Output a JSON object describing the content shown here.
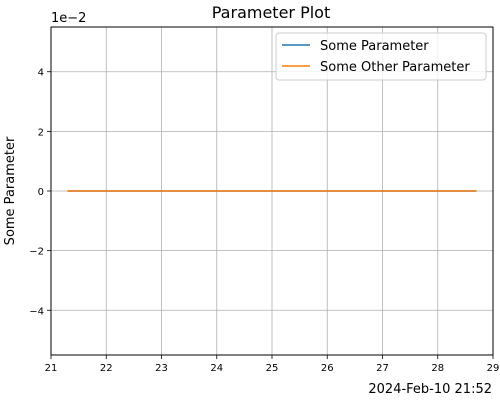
{
  "chart_data": {
    "type": "line",
    "title": "Parameter Plot",
    "ylabel": "Some Parameter",
    "xlabel": "",
    "y_scale_offset_label": "1e−2",
    "x_corner_label": "2024-Feb-10 21:52",
    "xlim": [
      21.0,
      29.0
    ],
    "ylim": [
      -5.5,
      5.5
    ],
    "x_ticks": [
      21,
      22,
      23,
      24,
      25,
      26,
      27,
      28,
      29
    ],
    "x_tick_labels": [
      "21",
      "22",
      "23",
      "24",
      "25",
      "26",
      "27",
      "28",
      "29"
    ],
    "y_ticks": [
      -4,
      -2,
      0,
      2,
      4
    ],
    "y_tick_labels": [
      "−4",
      "−2",
      "0",
      "2",
      "4"
    ],
    "grid": true,
    "legend_position": "top-right",
    "series": [
      {
        "name": "Some Parameter",
        "color": "#1f77b4",
        "x": [
          21.3,
          28.7
        ],
        "y": [
          0,
          0
        ]
      },
      {
        "name": "Some Other Parameter",
        "color": "#ff7f0e",
        "x": [
          21.3,
          28.7
        ],
        "y": [
          0,
          0
        ]
      }
    ]
  }
}
